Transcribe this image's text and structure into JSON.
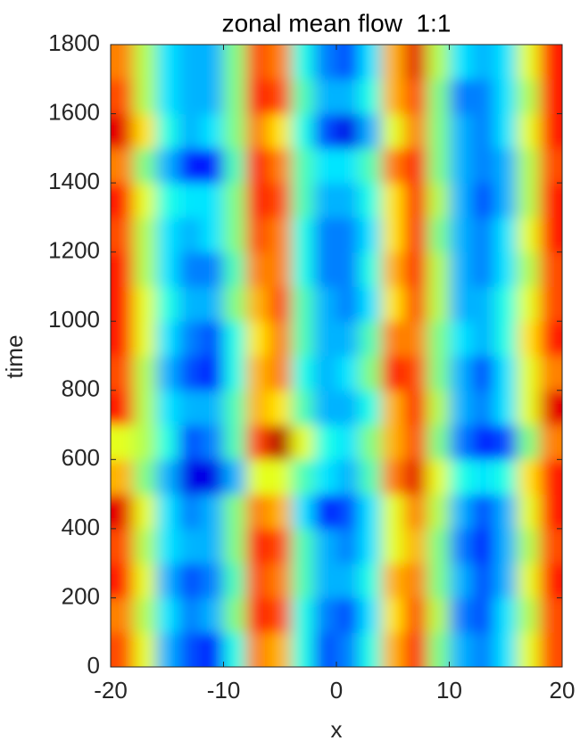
{
  "chart_data": {
    "type": "heatmap",
    "title": "zonal mean flow  1:1",
    "x_label": "x",
    "y_label": "time",
    "colormap": "jet",
    "clim": [
      0,
      1
    ],
    "grid": false,
    "xlim": [
      -20,
      20
    ],
    "ylim": [
      0,
      1800
    ],
    "xticks": [
      -20,
      -10,
      0,
      10,
      20
    ],
    "yticks": [
      0,
      200,
      400,
      600,
      800,
      1000,
      1200,
      1400,
      1600,
      1800
    ],
    "x": [
      -19,
      -17,
      -15,
      -13,
      -11,
      -9,
      -7,
      -5,
      -3,
      -1,
      1,
      3,
      5,
      7,
      9,
      11,
      13,
      15,
      17,
      19
    ],
    "y": [
      50,
      150,
      250,
      350,
      450,
      550,
      650,
      750,
      850,
      950,
      1050,
      1150,
      1250,
      1350,
      1450,
      1550,
      1650,
      1750
    ],
    "z": [
      [
        0.8,
        0.6,
        0.3,
        0.2,
        0.15,
        0.4,
        0.75,
        0.7,
        0.4,
        0.2,
        0.25,
        0.4,
        0.7,
        0.85,
        0.5,
        0.3,
        0.25,
        0.35,
        0.6,
        0.8
      ],
      [
        0.75,
        0.55,
        0.35,
        0.25,
        0.3,
        0.5,
        0.85,
        0.8,
        0.4,
        0.25,
        0.2,
        0.35,
        0.65,
        0.8,
        0.55,
        0.25,
        0.2,
        0.35,
        0.55,
        0.8
      ],
      [
        0.85,
        0.6,
        0.3,
        0.2,
        0.25,
        0.45,
        0.8,
        0.75,
        0.45,
        0.3,
        0.3,
        0.4,
        0.7,
        0.75,
        0.5,
        0.3,
        0.2,
        0.3,
        0.6,
        0.85
      ],
      [
        0.8,
        0.55,
        0.35,
        0.3,
        0.3,
        0.5,
        0.85,
        0.8,
        0.45,
        0.3,
        0.25,
        0.35,
        0.6,
        0.7,
        0.5,
        0.25,
        0.15,
        0.3,
        0.55,
        0.8
      ],
      [
        0.9,
        0.6,
        0.35,
        0.25,
        0.3,
        0.5,
        0.75,
        0.7,
        0.35,
        0.15,
        0.2,
        0.35,
        0.6,
        0.75,
        0.55,
        0.3,
        0.2,
        0.3,
        0.6,
        0.85
      ],
      [
        0.7,
        0.5,
        0.3,
        0.1,
        0.1,
        0.3,
        0.6,
        0.6,
        0.45,
        0.35,
        0.3,
        0.45,
        0.75,
        0.9,
        0.6,
        0.4,
        0.35,
        0.4,
        0.65,
        0.85
      ],
      [
        0.6,
        0.55,
        0.4,
        0.2,
        0.25,
        0.45,
        0.8,
        0.95,
        0.6,
        0.4,
        0.35,
        0.5,
        0.7,
        0.8,
        0.5,
        0.25,
        0.15,
        0.2,
        0.5,
        0.75
      ],
      [
        0.85,
        0.55,
        0.35,
        0.3,
        0.3,
        0.45,
        0.7,
        0.65,
        0.45,
        0.3,
        0.3,
        0.4,
        0.7,
        0.85,
        0.55,
        0.3,
        0.25,
        0.35,
        0.6,
        0.9
      ],
      [
        0.8,
        0.55,
        0.3,
        0.2,
        0.15,
        0.4,
        0.7,
        0.75,
        0.4,
        0.3,
        0.35,
        0.5,
        0.85,
        0.8,
        0.5,
        0.3,
        0.2,
        0.35,
        0.6,
        0.75
      ],
      [
        0.85,
        0.6,
        0.35,
        0.25,
        0.2,
        0.4,
        0.65,
        0.75,
        0.45,
        0.3,
        0.3,
        0.45,
        0.75,
        0.75,
        0.5,
        0.35,
        0.3,
        0.4,
        0.65,
        0.85
      ],
      [
        0.85,
        0.6,
        0.4,
        0.3,
        0.3,
        0.5,
        0.7,
        0.8,
        0.45,
        0.3,
        0.25,
        0.35,
        0.65,
        0.8,
        0.55,
        0.3,
        0.3,
        0.4,
        0.6,
        0.8
      ],
      [
        0.85,
        0.55,
        0.35,
        0.25,
        0.25,
        0.45,
        0.75,
        0.75,
        0.4,
        0.25,
        0.25,
        0.4,
        0.7,
        0.85,
        0.55,
        0.3,
        0.25,
        0.35,
        0.55,
        0.8
      ],
      [
        0.8,
        0.55,
        0.35,
        0.3,
        0.35,
        0.5,
        0.8,
        0.75,
        0.4,
        0.25,
        0.25,
        0.35,
        0.65,
        0.85,
        0.5,
        0.3,
        0.25,
        0.35,
        0.6,
        0.85
      ],
      [
        0.85,
        0.6,
        0.4,
        0.35,
        0.35,
        0.5,
        0.85,
        0.8,
        0.45,
        0.3,
        0.3,
        0.4,
        0.65,
        0.85,
        0.55,
        0.3,
        0.2,
        0.3,
        0.55,
        0.85
      ],
      [
        0.75,
        0.5,
        0.3,
        0.15,
        0.15,
        0.45,
        0.85,
        0.75,
        0.45,
        0.35,
        0.35,
        0.45,
        0.75,
        0.85,
        0.5,
        0.3,
        0.25,
        0.3,
        0.55,
        0.8
      ],
      [
        0.9,
        0.65,
        0.4,
        0.3,
        0.35,
        0.5,
        0.75,
        0.65,
        0.4,
        0.2,
        0.1,
        0.3,
        0.6,
        0.75,
        0.5,
        0.3,
        0.25,
        0.35,
        0.6,
        0.85
      ],
      [
        0.8,
        0.55,
        0.35,
        0.3,
        0.3,
        0.5,
        0.85,
        0.8,
        0.45,
        0.3,
        0.3,
        0.4,
        0.7,
        0.8,
        0.5,
        0.25,
        0.25,
        0.35,
        0.55,
        0.85
      ],
      [
        0.75,
        0.55,
        0.35,
        0.3,
        0.3,
        0.5,
        0.8,
        0.75,
        0.4,
        0.25,
        0.2,
        0.35,
        0.7,
        0.9,
        0.55,
        0.35,
        0.3,
        0.35,
        0.6,
        0.85
      ]
    ]
  }
}
